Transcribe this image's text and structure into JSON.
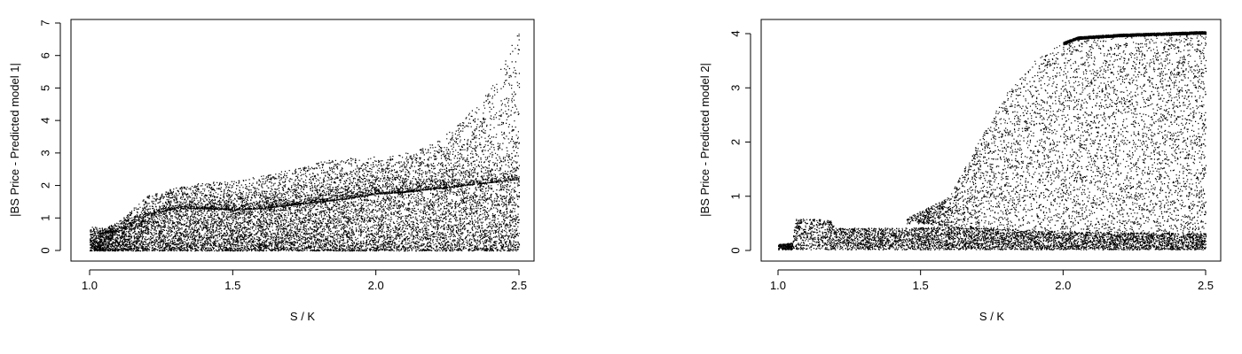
{
  "chart_data": [
    {
      "type": "scatter",
      "xlabel": "S / K",
      "ylabel": "|BS Price - Predicted model 1|",
      "xlim": [
        1.0,
        2.5
      ],
      "ylim": [
        0,
        7
      ],
      "xticks": [
        1.0,
        1.5,
        2.0,
        2.5
      ],
      "xtick_labels": [
        "1.0",
        "1.5",
        "2.0",
        "2.5"
      ],
      "yticks": [
        0,
        1,
        2,
        3,
        4,
        5,
        6,
        7
      ],
      "ytick_labels": [
        "0",
        "1",
        "2",
        "3",
        "4",
        "5",
        "6",
        "7"
      ],
      "grid": false,
      "point_color": "#000000",
      "upper_envelope": [
        [
          1.0,
          0.75
        ],
        [
          1.05,
          0.7
        ],
        [
          1.1,
          0.9
        ],
        [
          1.15,
          1.3
        ],
        [
          1.2,
          1.7
        ],
        [
          1.3,
          1.95
        ],
        [
          1.4,
          2.1
        ],
        [
          1.5,
          2.15
        ],
        [
          1.6,
          2.3
        ],
        [
          1.7,
          2.5
        ],
        [
          1.8,
          2.75
        ],
        [
          1.9,
          2.85
        ],
        [
          2.0,
          2.9
        ],
        [
          2.1,
          3.0
        ],
        [
          2.2,
          3.3
        ],
        [
          2.3,
          4.0
        ],
        [
          2.4,
          5.0
        ],
        [
          2.5,
          6.8
        ]
      ],
      "dense_band_top": [
        [
          1.0,
          0.5
        ],
        [
          1.1,
          0.6
        ],
        [
          1.2,
          1.1
        ],
        [
          1.3,
          1.3
        ],
        [
          1.4,
          1.3
        ],
        [
          1.5,
          1.25
        ],
        [
          1.6,
          1.3
        ],
        [
          1.7,
          1.4
        ],
        [
          1.8,
          1.5
        ],
        [
          1.9,
          1.6
        ],
        [
          2.0,
          1.75
        ],
        [
          2.1,
          1.8
        ],
        [
          2.2,
          1.9
        ],
        [
          2.3,
          2.0
        ],
        [
          2.4,
          2.1
        ],
        [
          2.5,
          2.2
        ]
      ]
    },
    {
      "type": "scatter",
      "xlabel": "S / K",
      "ylabel": "|BS Price - Predicted model 2|",
      "xlim": [
        1.0,
        2.5
      ],
      "ylim": [
        0,
        4
      ],
      "xticks": [
        1.0,
        1.5,
        2.0,
        2.5
      ],
      "xtick_labels": [
        "1.0",
        "1.5",
        "2.0",
        "2.5"
      ],
      "yticks": [
        0,
        1,
        2,
        3,
        4
      ],
      "ytick_labels": [
        "0",
        "1",
        "2",
        "3",
        "4"
      ],
      "grid": false,
      "point_color": "#000000",
      "low_band": [
        [
          1.0,
          0.12
        ],
        [
          1.05,
          0.15
        ],
        [
          1.06,
          0.6
        ],
        [
          1.18,
          0.58
        ],
        [
          1.2,
          0.42
        ],
        [
          1.45,
          0.42
        ],
        [
          1.6,
          0.45
        ],
        [
          1.8,
          0.4
        ],
        [
          2.0,
          0.36
        ],
        [
          2.2,
          0.34
        ],
        [
          2.5,
          0.32
        ]
      ],
      "upper_region_top": [
        [
          1.45,
          0.6
        ],
        [
          1.6,
          1.0
        ],
        [
          1.7,
          2.0
        ],
        [
          1.8,
          2.9
        ],
        [
          1.9,
          3.5
        ],
        [
          2.0,
          3.85
        ],
        [
          2.05,
          3.95
        ],
        [
          2.2,
          4.0
        ],
        [
          2.5,
          4.05
        ]
      ],
      "upper_region_bottom": [
        [
          1.5,
          0.5
        ],
        [
          1.7,
          0.4
        ],
        [
          2.0,
          0.35
        ],
        [
          2.5,
          0.3
        ]
      ]
    }
  ]
}
